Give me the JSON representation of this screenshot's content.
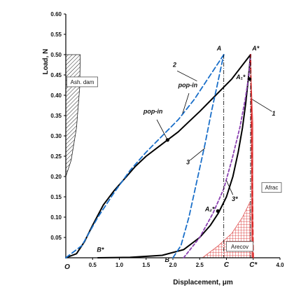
{
  "chart_data": {
    "type": "line",
    "xlabel": "Displacement, μm",
    "ylabel": "Load, N",
    "xlim": [
      0,
      4.0
    ],
    "ylim": [
      0,
      0.6
    ],
    "x_ticks": [
      "0.5",
      "1.0",
      "1.5",
      "2.0",
      "2.5",
      "3.0",
      "3.5",
      "4.0"
    ],
    "y_ticks": [
      "0.05",
      "0.10",
      "0.15",
      "0.20",
      "0.25",
      "0.30",
      "0.35",
      "0.40",
      "0.45",
      "0.50",
      "0.55",
      "0.60"
    ],
    "x_tick_overrides": {
      "3.0": "C",
      "3.5": "C*"
    },
    "origin_label": "O",
    "series": [
      {
        "id": "loading-1",
        "color": "#000000",
        "dash": "solid",
        "x": [
          0,
          0.2,
          0.35,
          0.5,
          0.7,
          0.9,
          1.1,
          1.3,
          1.5,
          1.7,
          1.9,
          2.1,
          2.3,
          2.5,
          2.8,
          3.1,
          3.45
        ],
        "y": [
          0,
          0.01,
          0.04,
          0.08,
          0.13,
          0.165,
          0.195,
          0.225,
          0.25,
          0.27,
          0.29,
          0.31,
          0.335,
          0.36,
          0.4,
          0.44,
          0.5
        ]
      },
      {
        "id": "unloading-1",
        "color": "#000000",
        "dash": "solid",
        "x": [
          0.6,
          1.2,
          1.8,
          2.2,
          2.5,
          2.7,
          2.85,
          3.0,
          3.12,
          3.22,
          3.3,
          3.36,
          3.4,
          3.43,
          3.45
        ],
        "y": [
          0,
          0.001,
          0.006,
          0.02,
          0.05,
          0.08,
          0.11,
          0.15,
          0.2,
          0.26,
          0.32,
          0.38,
          0.43,
          0.47,
          0.5
        ]
      },
      {
        "id": "loading-2",
        "color": "#1a6fc9",
        "dash": "long-dash",
        "x": [
          0,
          0.3,
          0.6,
          0.9,
          1.2,
          1.5,
          1.8,
          2.1,
          2.4,
          2.6,
          2.8,
          2.95
        ],
        "y": [
          0,
          0.03,
          0.1,
          0.16,
          0.215,
          0.26,
          0.3,
          0.34,
          0.39,
          0.43,
          0.47,
          0.5
        ]
      },
      {
        "id": "unloading-2",
        "color": "#1a6fc9",
        "dash": "long-dash",
        "x": [
          2.0,
          2.15,
          2.3,
          2.45,
          2.6,
          2.72,
          2.82,
          2.9,
          2.95
        ],
        "y": [
          0,
          0.03,
          0.1,
          0.19,
          0.28,
          0.36,
          0.42,
          0.47,
          0.5
        ]
      },
      {
        "id": "unloading-3",
        "color": "#8a3fb0",
        "dash": "dash",
        "x": [
          2.2,
          2.5,
          2.75,
          2.95,
          3.1,
          3.25,
          3.35,
          3.42,
          3.45
        ],
        "y": [
          0,
          0.05,
          0.11,
          0.17,
          0.24,
          0.32,
          0.39,
          0.45,
          0.5
        ]
      },
      {
        "id": "unloading-1-steep",
        "color": "#d62020",
        "dash": "long-dash",
        "x": [
          3.5,
          3.49,
          3.48,
          3.47,
          3.46,
          3.45
        ],
        "y": [
          0,
          0.1,
          0.2,
          0.3,
          0.4,
          0.5
        ]
      }
    ],
    "annotations": {
      "A": "A",
      "A_star": "A*",
      "A1_star": "A₁*",
      "A2_star": "A₂*",
      "B": "B",
      "B_star": "B*",
      "pop_in_1": "pop-in",
      "pop_in_2": "pop-in",
      "label_1": "1",
      "label_2": "2",
      "label_3": "3",
      "label_3_star": "3*",
      "A_sh_dam": "Ash. dam",
      "A_frac": "Afrac",
      "A_recov": "Arecov"
    },
    "grid": false,
    "legend": "none"
  }
}
